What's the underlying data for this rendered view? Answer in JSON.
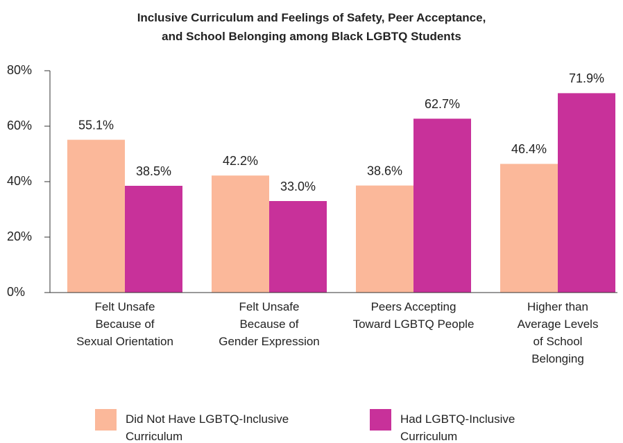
{
  "chart_data": {
    "type": "bar",
    "title": "Inclusive Curriculum and Feelings of Safety, Peer Acceptance,\nand School Belonging among Black LGBTQ Students",
    "categories": [
      "Felt Unsafe\nBecause of\nSexual Orientation",
      "Felt Unsafe\nBecause of\nGender Expression",
      "Peers Accepting\nToward LGBTQ People",
      "Higher than\nAverage Levels\nof School\nBelonging"
    ],
    "series": [
      {
        "name": "Did Not Have LGBTQ-Inclusive\nCurriculum",
        "color": "#fbb89a",
        "values": [
          55.1,
          42.2,
          38.6,
          46.4
        ],
        "value_labels": [
          "55.1%",
          "42.2%",
          "38.6%",
          "46.4%"
        ]
      },
      {
        "name": "Had LGBTQ-Inclusive\nCurriculum",
        "color": "#c8319a",
        "values": [
          38.5,
          33.0,
          62.7,
          71.9
        ],
        "value_labels": [
          "38.5%",
          "33.0%",
          "62.7%",
          "71.9%"
        ]
      }
    ],
    "ylim": [
      0,
      80
    ],
    "yticks": [
      {
        "value": 0,
        "label": "0%"
      },
      {
        "value": 20,
        "label": "20%"
      },
      {
        "value": 40,
        "label": "40%"
      },
      {
        "value": 60,
        "label": "60%"
      },
      {
        "value": 80,
        "label": "80%"
      }
    ]
  }
}
